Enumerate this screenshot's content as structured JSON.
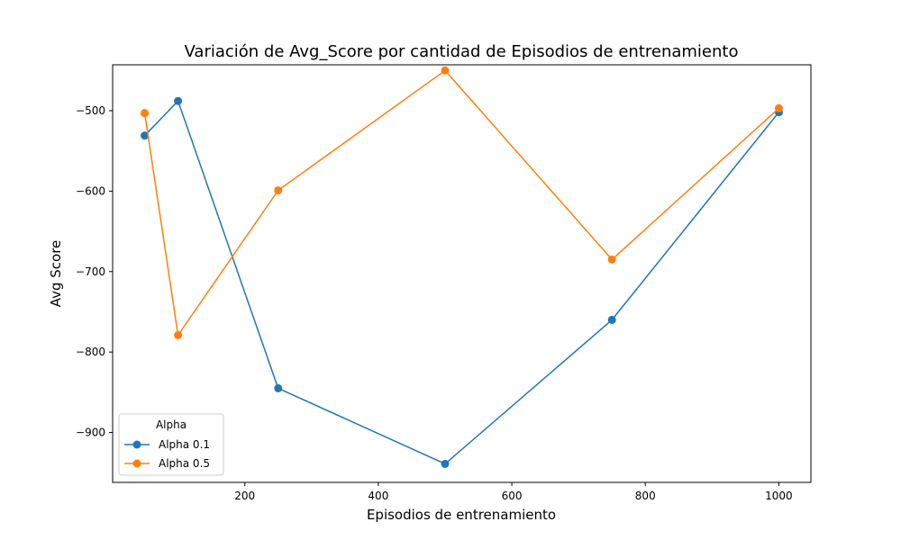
{
  "chart_data": {
    "type": "line",
    "title": "Variación de Avg_Score por cantidad de Episodios de entrenamiento",
    "xlabel": "Episodios de entrenamiento",
    "ylabel": "Avg Score",
    "xlim": [
      2,
      1048
    ],
    "ylim": [
      -962,
      -443
    ],
    "x_ticks": [
      200,
      400,
      600,
      800,
      1000
    ],
    "y_ticks": [
      -900,
      -800,
      -700,
      -600,
      -500
    ],
    "grid": false,
    "legend": {
      "title": "Alpha",
      "placement": "lower-left"
    },
    "x": [
      50,
      100,
      250,
      500,
      750,
      1000
    ],
    "series": [
      {
        "name": "Alpha 0.1",
        "color": "#1f77b4",
        "values": [
          -531,
          -488,
          -845,
          -939,
          -760,
          -502
        ]
      },
      {
        "name": "Alpha 0.5",
        "color": "#ff7f0e",
        "values": [
          -503,
          -779,
          -599,
          -450,
          -685,
          -497
        ]
      }
    ]
  }
}
